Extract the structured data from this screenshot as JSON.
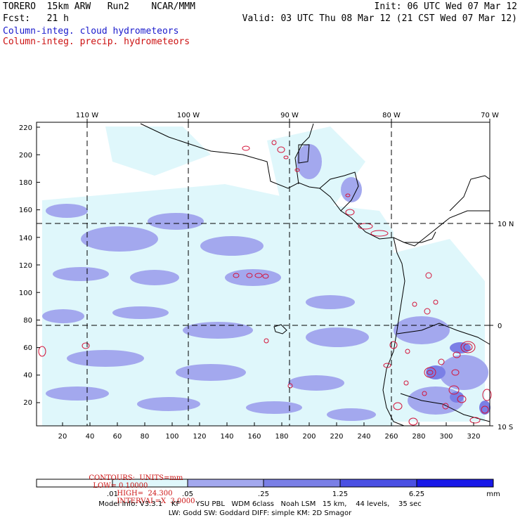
{
  "header": {
    "model": "TORERO  15km ARW   Run2    NCAR/MMM",
    "init": "Init: 06 UTC Wed 07 Mar 12",
    "fcst": "Fcst:   21 h",
    "valid": "Valid: 03 UTC Thu 08 Mar 12 (21 CST Wed 07 Mar 12)",
    "field_cloud": "Column-integ. cloud hydrometeors",
    "field_precip": "Column-integ. precip. hydrometeors"
  },
  "colors": {
    "cloud_text": "#1a1acc",
    "precip_text": "#cc1111",
    "shade_1": "#dff7fb",
    "shade_2": "#a3a8ee",
    "shade_3": "#7a7fe6",
    "shade_4": "#4a50e3",
    "shade_5": "#1818e8",
    "contour": "#d4143a"
  },
  "axes": {
    "top_lon_labels": [
      "110 W",
      "100 W",
      "90 W",
      "80 W",
      "70 W"
    ],
    "right_lat_labels": [
      "10 N",
      "0",
      "10 S"
    ],
    "left_y_ticks": [
      "220",
      "200",
      "180",
      "160",
      "140",
      "120",
      "100",
      "80",
      "60",
      "40",
      "20"
    ],
    "bottom_x_ticks": [
      "20",
      "40",
      "60",
      "80",
      "100",
      "120",
      "140",
      "160",
      "180",
      "200",
      "220",
      "240",
      "260",
      "280",
      "300",
      "320"
    ]
  },
  "contour_info": {
    "contours": "CONTOURS:  UNITS=mm",
    "low": "LOW= 0.10000",
    "high": "HIGH=  24.300",
    "interval": "INTERVAL=X  3.0000"
  },
  "colorbar": {
    "labels": [
      ".01",
      ".05",
      ".25",
      "1.25",
      "6.25"
    ],
    "unit": "mm"
  },
  "model_info": {
    "line1": "Model Info: V3.3.1    KF       YSU PBL   WDM 6class   Noah LSM   15 km,    44 levels,    35 sec",
    "line2": "LW: Godd SW: Goddard DIFF: simple KM: 2D Smagor"
  }
}
